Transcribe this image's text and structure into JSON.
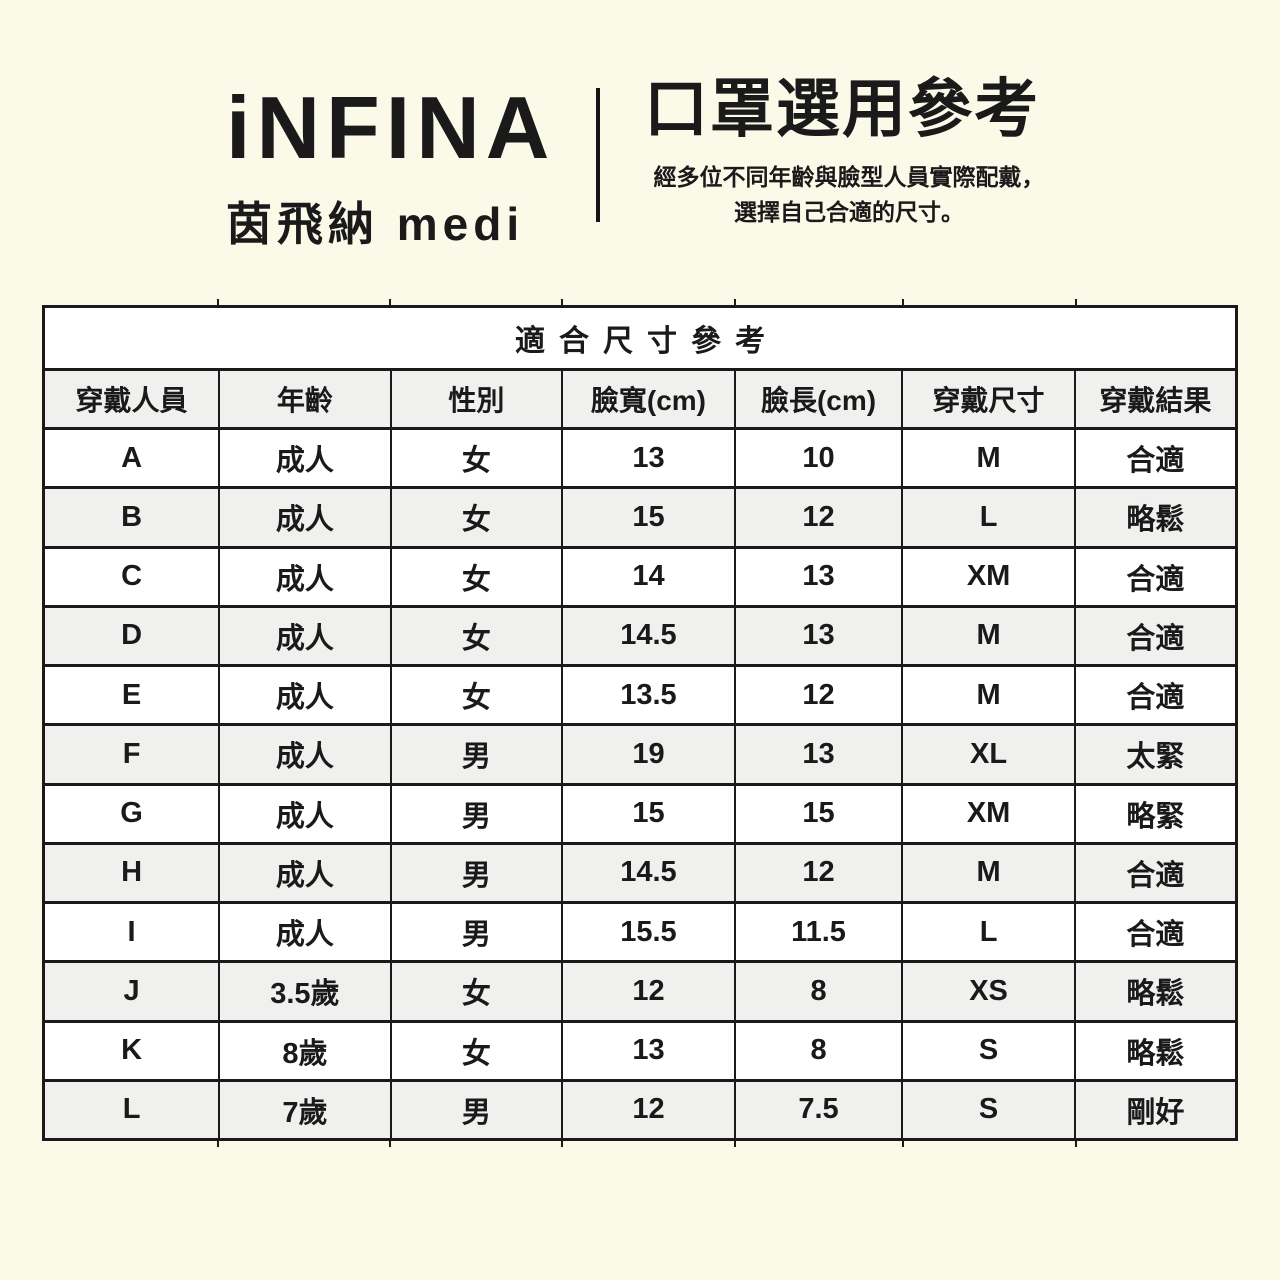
{
  "brand": {
    "name": "iNFINA",
    "subtitle": "茵飛納 medi"
  },
  "header": {
    "title": "口罩選用參考",
    "subtitle_line1": "經多位不同年齡與臉型人員實際配戴，",
    "subtitle_line2": "選擇自己合適的尺寸。"
  },
  "table": {
    "title": "適合尺寸參考",
    "columns": [
      "穿戴人員",
      "年齡",
      "性別",
      "臉寬(cm)",
      "臉長(cm)",
      "穿戴尺寸",
      "穿戴結果"
    ],
    "rows": [
      [
        "A",
        "成人",
        "女",
        "13",
        "10",
        "M",
        "合適"
      ],
      [
        "B",
        "成人",
        "女",
        "15",
        "12",
        "L",
        "略鬆"
      ],
      [
        "C",
        "成人",
        "女",
        "14",
        "13",
        "XM",
        "合適"
      ],
      [
        "D",
        "成人",
        "女",
        "14.5",
        "13",
        "M",
        "合適"
      ],
      [
        "E",
        "成人",
        "女",
        "13.5",
        "12",
        "M",
        "合適"
      ],
      [
        "F",
        "成人",
        "男",
        "19",
        "13",
        "XL",
        "太緊"
      ],
      [
        "G",
        "成人",
        "男",
        "15",
        "15",
        "XM",
        "略緊"
      ],
      [
        "H",
        "成人",
        "男",
        "14.5",
        "12",
        "M",
        "合適"
      ],
      [
        "I",
        "成人",
        "男",
        "15.5",
        "11.5",
        "L",
        "合適"
      ],
      [
        "J",
        "3.5歲",
        "女",
        "12",
        "8",
        "XS",
        "略鬆"
      ],
      [
        "K",
        "8歲",
        "女",
        "13",
        "8",
        "S",
        "略鬆"
      ],
      [
        "L",
        "7歲",
        "男",
        "12",
        "7.5",
        "S",
        "剛好"
      ]
    ]
  },
  "colors": {
    "background": "#FBF9E8",
    "text": "#1A1A1A",
    "border": "#1A1A1A",
    "row_white": "#FFFFFF",
    "row_alt": "#F0F0EE"
  }
}
